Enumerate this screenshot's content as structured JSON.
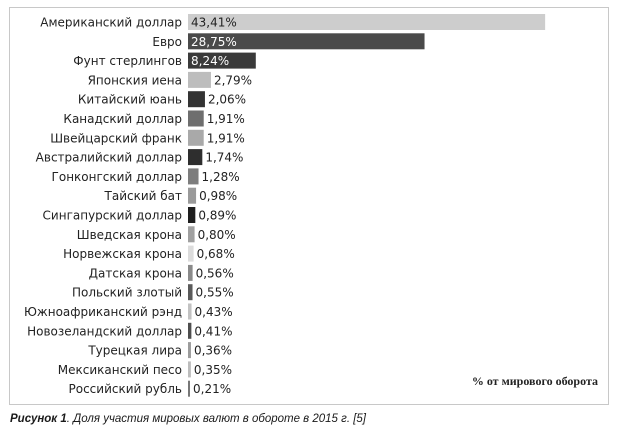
{
  "chart_data": {
    "type": "bar",
    "orientation": "horizontal",
    "categories": [
      "Американский доллар",
      "Евро",
      "Фунт стерлингов",
      "Японския иена",
      "Китайский юань",
      "Канадский доллар",
      "Швейцарский франк",
      "Австралийский доллар",
      "Гонконгский доллар",
      "Тайский бат",
      "Сингапурский доллар",
      "Шведская крона",
      "Норвежская крона",
      "Датская крона",
      "Польский злотый",
      "Южноафриканский рэнд",
      "Новозеландский доллар",
      "Турецкая лира",
      "Мексиканский песо",
      "Российский рубль"
    ],
    "values": [
      43.41,
      28.75,
      8.24,
      2.79,
      2.06,
      1.91,
      1.91,
      1.74,
      1.28,
      0.98,
      0.89,
      0.8,
      0.68,
      0.56,
      0.55,
      0.43,
      0.41,
      0.36,
      0.35,
      0.21
    ],
    "value_labels": [
      "43,41%",
      "28,75%",
      "8,24%",
      "2,79%",
      "2,06%",
      "1,91%",
      "1,91%",
      "1,74%",
      "1,28%",
      "0,98%",
      "0,89%",
      "0,80%",
      "0,68%",
      "0,56%",
      "0,55%",
      "0,43%",
      "0,41%",
      "0,36%",
      "0,35%",
      "0,21%"
    ],
    "colors": [
      "#cdcdcd",
      "#4a4a4a",
      "#3a3a3a",
      "#bdbdbd",
      "#333333",
      "#6e6e6e",
      "#a9a9a9",
      "#2e2e2e",
      "#7d7d7d",
      "#9a9a9a",
      "#1e1e1e",
      "#a0a0a0",
      "#dcdcdc",
      "#8a8a8a",
      "#5a5a5a",
      "#c2c2c2",
      "#4e4e4e",
      "#9c9c9c",
      "#bdbdbd",
      "#777777"
    ],
    "xlim": [
      0,
      44
    ],
    "xlabel": "% от мирового оборота",
    "grid": false,
    "legend": "none"
  },
  "caption": {
    "label": "Рисунок 1",
    "text": ". Доля участия мировых валют в обороте в 2015 г. [5]"
  }
}
